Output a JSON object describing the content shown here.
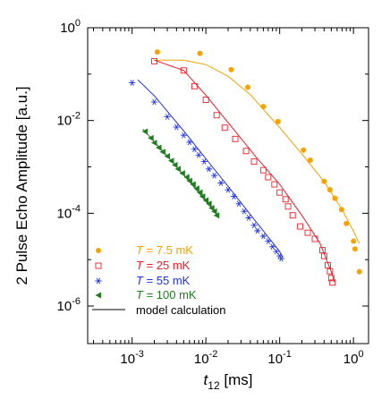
{
  "chart_data": {
    "type": "scatter",
    "x_scale": "log",
    "y_scale": "log",
    "xlim": [
      0.00025,
      1.6
    ],
    "ylim": [
      1.55e-07,
      1.0
    ],
    "grid": false,
    "legend_position": "bottom-left",
    "xlabel": {
      "main": "t",
      "sub": "12",
      "rest": " [ms]"
    },
    "ylabel": "2 Pulse Echo Amplitude [a.u.]",
    "x_ticks": [
      {
        "value": 0.001,
        "base": "10",
        "exp": "-3"
      },
      {
        "value": 0.01,
        "base": "10",
        "exp": "-2"
      },
      {
        "value": 0.1,
        "base": "10",
        "exp": "-1"
      },
      {
        "value": 1,
        "base": "10",
        "exp": "0"
      }
    ],
    "y_ticks": [
      {
        "value": 1,
        "base": "10",
        "exp": "0"
      },
      {
        "value": 0.01,
        "base": "10",
        "exp": "-2"
      },
      {
        "value": 0.0001,
        "base": "10",
        "exp": "-4"
      },
      {
        "value": 1e-06,
        "base": "10",
        "exp": "-6"
      }
    ],
    "series": [
      {
        "name": "T = 7.5 mK",
        "legend": {
          "var": "T",
          "rest": " = 7.5 mK"
        },
        "marker": "filled-circle",
        "color": "#F5A300",
        "points": [
          [
            0.0022,
            0.3
          ],
          [
            0.0083,
            0.28
          ],
          [
            0.022,
            0.125
          ],
          [
            0.037,
            0.052
          ],
          [
            0.06,
            0.02
          ],
          [
            0.095,
            0.0095
          ],
          [
            0.21,
            0.0023
          ],
          [
            0.26,
            0.0014
          ],
          [
            0.4,
            0.00049
          ],
          [
            0.48,
            0.00032
          ],
          [
            0.56,
            0.00021
          ],
          [
            0.69,
            0.00012
          ],
          [
            0.8,
            6e-05
          ],
          [
            1.0,
            2.5e-05
          ],
          [
            1.05,
            1.7e-05
          ],
          [
            1.2,
            5.5e-06
          ]
        ],
        "model": [
          [
            0.002,
            0.2
          ],
          [
            0.005,
            0.2
          ],
          [
            0.01,
            0.16
          ],
          [
            0.02,
            0.09
          ],
          [
            0.04,
            0.036
          ],
          [
            0.1,
            0.007
          ],
          [
            0.2,
            0.0019
          ],
          [
            0.4,
            0.00048
          ],
          [
            0.7,
            0.00012
          ],
          [
            1.0,
            4.1e-05
          ],
          [
            1.2,
            2.2e-05
          ]
        ]
      },
      {
        "name": "T = 25 mK",
        "legend": {
          "var": "T",
          "rest": " = 25 mK"
        },
        "marker": "open-square",
        "color": "#E8202A",
        "points": [
          [
            0.002,
            0.19
          ],
          [
            0.005,
            0.12
          ],
          [
            0.007,
            0.055
          ],
          [
            0.01,
            0.028
          ],
          [
            0.014,
            0.013
          ],
          [
            0.018,
            0.007
          ],
          [
            0.025,
            0.004
          ],
          [
            0.035,
            0.0022
          ],
          [
            0.045,
            0.0013
          ],
          [
            0.06,
            0.00085
          ],
          [
            0.07,
            0.0006
          ],
          [
            0.085,
            0.00042
          ],
          [
            0.1,
            0.00028
          ],
          [
            0.12,
            0.0002
          ],
          [
            0.13,
            0.00014
          ],
          [
            0.15,
            9e-05
          ],
          [
            0.19,
            5.2e-05
          ],
          [
            0.24,
            3.8e-05
          ],
          [
            0.3,
            2.8e-05
          ],
          [
            0.38,
            1.6e-05
          ],
          [
            0.4,
            1.2e-05
          ],
          [
            0.45,
            7.6e-06
          ],
          [
            0.48,
            5.6e-06
          ],
          [
            0.5,
            4e-06
          ],
          [
            0.52,
            3.2e-06
          ]
        ],
        "model": [
          [
            0.002,
            0.2
          ],
          [
            0.005,
            0.12
          ],
          [
            0.01,
            0.035
          ],
          [
            0.02,
            0.009
          ],
          [
            0.05,
            0.0015
          ],
          [
            0.1,
            0.00042
          ],
          [
            0.2,
            9e-05
          ],
          [
            0.35,
            2.3e-05
          ],
          [
            0.5,
            5.5e-06
          ],
          [
            0.55,
            3.3e-06
          ]
        ]
      },
      {
        "name": "T = 55 mK",
        "legend": {
          "var": "T",
          "rest": " = 55 mK"
        },
        "marker": "asterisk",
        "color": "#2233E0",
        "points": [
          [
            0.001,
            0.065
          ],
          [
            0.002,
            0.025
          ],
          [
            0.003,
            0.012
          ],
          [
            0.004,
            0.0072
          ],
          [
            0.005,
            0.0048
          ],
          [
            0.006,
            0.0034
          ],
          [
            0.007,
            0.0024
          ],
          [
            0.008,
            0.0018
          ],
          [
            0.0095,
            0.0013
          ],
          [
            0.011,
            0.0009
          ],
          [
            0.013,
            0.00065
          ],
          [
            0.016,
            0.00045
          ],
          [
            0.02,
            0.00032
          ],
          [
            0.024,
            0.00023
          ],
          [
            0.028,
            0.00016
          ],
          [
            0.033,
            0.00011
          ],
          [
            0.038,
            8e-05
          ],
          [
            0.045,
            5.5e-05
          ],
          [
            0.05,
            4.2e-05
          ],
          [
            0.06,
            3.2e-05
          ],
          [
            0.07,
            2.5e-05
          ],
          [
            0.08,
            1.9e-05
          ],
          [
            0.09,
            1.5e-05
          ],
          [
            0.1,
            1.2e-05
          ],
          [
            0.105,
            1.05e-05
          ]
        ],
        "model": [
          [
            0.0012,
            0.075
          ],
          [
            0.002,
            0.034
          ],
          [
            0.005,
            0.006
          ],
          [
            0.01,
            0.0015
          ],
          [
            0.02,
            0.00038
          ],
          [
            0.05,
            6e-05
          ],
          [
            0.1,
            1.5e-05
          ],
          [
            0.11,
            1.1e-05
          ]
        ]
      },
      {
        "name": "T = 100 mK",
        "legend": {
          "var": "T",
          "rest": " = 100 mK"
        },
        "marker": "left-triangle",
        "color": "#1E7D1E",
        "points": [
          [
            0.0015,
            0.0058
          ],
          [
            0.0018,
            0.0042
          ],
          [
            0.002,
            0.0033
          ],
          [
            0.0023,
            0.0026
          ],
          [
            0.0026,
            0.0021
          ],
          [
            0.003,
            0.0017
          ],
          [
            0.0034,
            0.00135
          ],
          [
            0.0038,
            0.0011
          ],
          [
            0.0042,
            0.0009
          ],
          [
            0.0048,
            0.00073
          ],
          [
            0.0055,
            0.0006
          ],
          [
            0.006,
            0.0005
          ],
          [
            0.0067,
            0.00042
          ],
          [
            0.0075,
            0.00034
          ],
          [
            0.0083,
            0.00028
          ],
          [
            0.009,
            0.00023
          ],
          [
            0.01,
            0.00019
          ],
          [
            0.011,
            0.00016
          ],
          [
            0.012,
            0.00013
          ],
          [
            0.013,
            0.00011
          ],
          [
            0.014,
            9e-05
          ]
        ],
        "model": [
          [
            0.0014,
            0.0065
          ],
          [
            0.003,
            0.0017
          ],
          [
            0.006,
            0.00048
          ],
          [
            0.01,
            0.00018
          ],
          [
            0.015,
            8.5e-05
          ]
        ]
      }
    ],
    "model_legend": "model calculation"
  }
}
